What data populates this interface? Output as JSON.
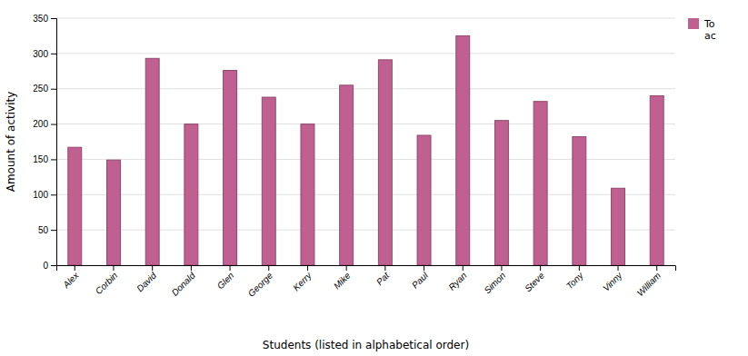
{
  "chart_data": {
    "type": "bar",
    "categories": [
      "Alex",
      "Corbin",
      "David",
      "Donald",
      "Glen",
      "George",
      "Kerry",
      "Mike",
      "Pat",
      "Paul",
      "Ryan",
      "Simon",
      "Steve",
      "Tony",
      "Vinny",
      "William"
    ],
    "series": [
      {
        "name": "To\nac",
        "color": "#C06090",
        "values": [
          167,
          149,
          293,
          200,
          276,
          238,
          200,
          255,
          291,
          184,
          325,
          205,
          232,
          182,
          109,
          240
        ]
      }
    ],
    "xlabel": "Students (listed in alphabetical order)",
    "ylabel": "Amount of activity",
    "ylim": [
      0,
      350
    ],
    "yticks": [
      0,
      50,
      100,
      150,
      200,
      250,
      300,
      350
    ],
    "grid": true,
    "legend": "right"
  }
}
